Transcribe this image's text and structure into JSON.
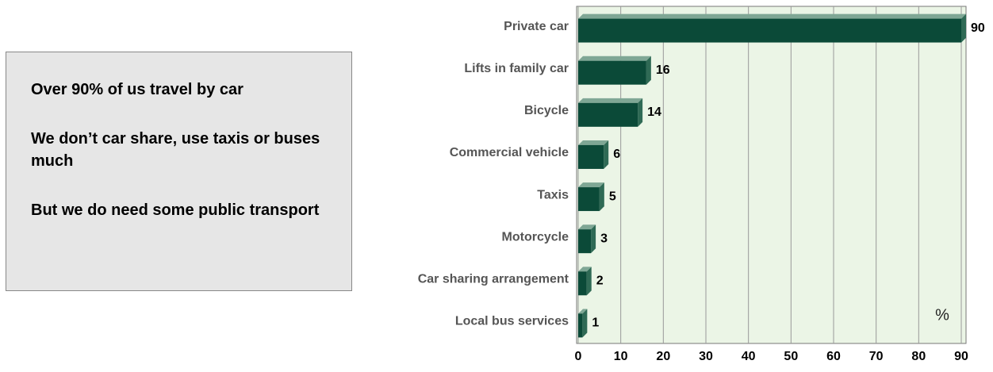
{
  "chart_data": {
    "type": "bar",
    "orientation": "horizontal",
    "categories": [
      "Private car",
      "Lifts in family car",
      "Bicycle",
      "Commercial vehicle",
      "Taxis",
      "Motorcycle",
      "Car sharing arrangement",
      "Local bus services"
    ],
    "values": [
      90,
      16,
      14,
      6,
      5,
      3,
      2,
      1
    ],
    "color": "#0b4a38",
    "xlim": [
      0,
      90
    ],
    "xticks": [
      0,
      10,
      20,
      30,
      40,
      50,
      60,
      70,
      80,
      90
    ],
    "grid": true,
    "annotation": "%"
  },
  "text_box": {
    "paragraphs": [
      "Over 90% of us travel by car",
      "We don’t car share, use taxis or buses much",
      "But we do need some public transport"
    ]
  }
}
